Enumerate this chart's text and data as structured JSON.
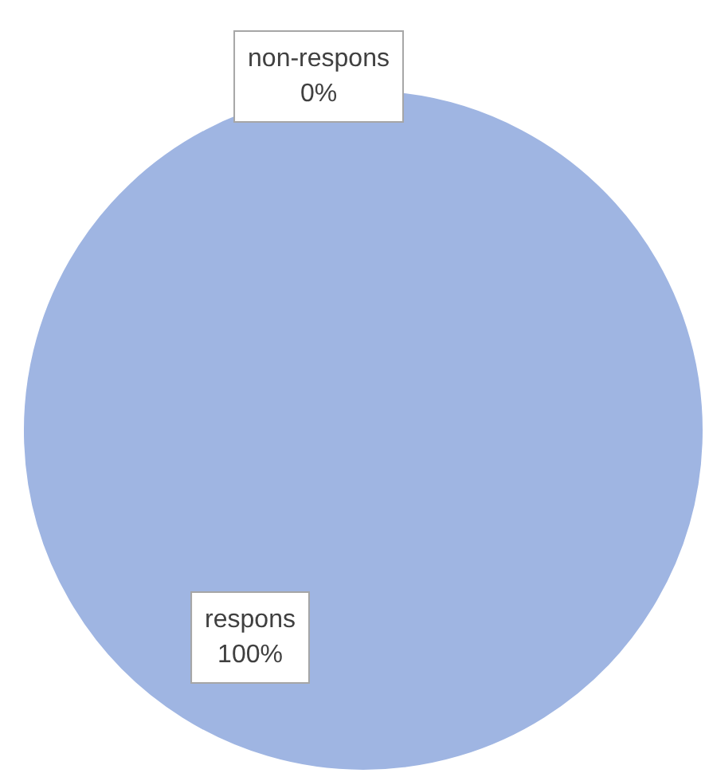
{
  "chart_data": {
    "type": "pie",
    "categories": [
      "non-respons",
      "respons"
    ],
    "values": [
      0,
      100
    ],
    "colors": [
      "#4472c4",
      "#9fb5e2"
    ],
    "value_labels": [
      "0%",
      "100%"
    ],
    "legend": false
  }
}
